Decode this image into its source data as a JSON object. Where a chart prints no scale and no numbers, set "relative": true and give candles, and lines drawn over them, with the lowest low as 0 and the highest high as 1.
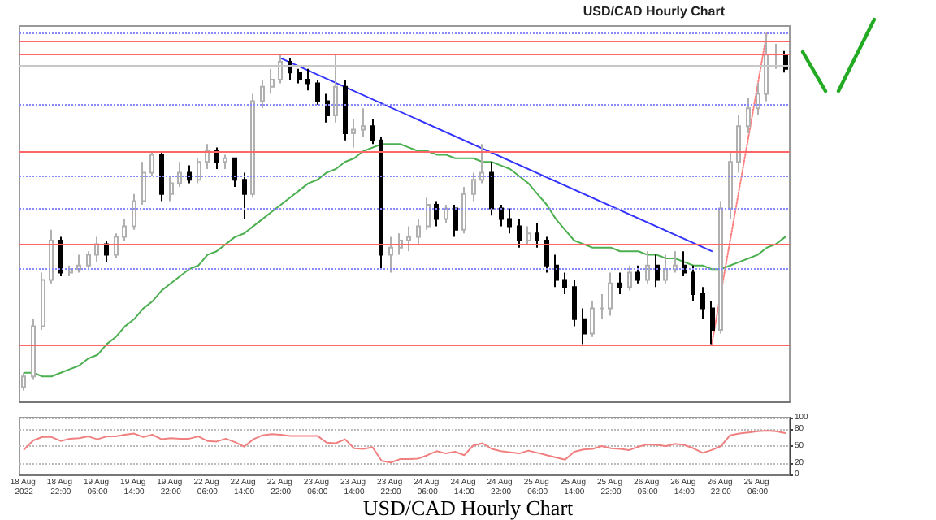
{
  "chart_data": [
    {
      "type": "candlestick",
      "title": "USD/CAD Hourly Chart",
      "relative": true,
      "tick_labels": false,
      "marker": "none",
      "categories": [
        "18 Aug 2022",
        null,
        null,
        null,
        "18 Aug 22:00",
        null,
        null,
        null,
        "19 Aug 06:00",
        null,
        null,
        null,
        "19 Aug 14:00",
        null,
        null,
        null,
        "19 Aug 22:00",
        null,
        null,
        null,
        "22 Aug 06:00",
        null,
        null,
        null,
        "22 Aug 14:00",
        null,
        null,
        null,
        "22 Aug 22:00",
        null,
        null,
        null,
        "23 Aug 06:00",
        null,
        null,
        null,
        "23 Aug 14:00",
        null,
        null,
        null,
        "23 Aug 22:00",
        null,
        null,
        null,
        "24 Aug 06:00",
        null,
        null,
        null,
        "24 Aug 14:00",
        null,
        null,
        null,
        "24 Aug 22:00",
        null,
        null,
        null,
        "25 Aug 06:00",
        null,
        null,
        null,
        "25 Aug 14:00",
        null,
        null,
        null,
        "25 Aug 22:00",
        null,
        null,
        null,
        "26 Aug 06:00",
        null,
        null,
        null,
        "26 Aug 14:00",
        null,
        null,
        null,
        "26 Aug 22:00",
        null,
        null,
        null,
        "29 Aug 06:00",
        null,
        null,
        null
      ],
      "ohlc": [
        [
          0.01,
          0.05,
          0,
          0.04
        ],
        [
          0.04,
          0.2,
          0.03,
          0.18
        ],
        [
          0.18,
          0.33,
          0.17,
          0.31
        ],
        [
          0.31,
          0.45,
          0.3,
          0.42
        ],
        [
          0.42,
          0.43,
          0.32,
          0.33
        ],
        [
          0.33,
          0.35,
          0.32,
          0.34
        ],
        [
          0.34,
          0.38,
          0.33,
          0.35
        ],
        [
          0.35,
          0.39,
          0.34,
          0.38
        ],
        [
          0.38,
          0.43,
          0.36,
          0.41
        ],
        [
          0.41,
          0.42,
          0.36,
          0.38
        ],
        [
          0.38,
          0.44,
          0.37,
          0.43
        ],
        [
          0.43,
          0.48,
          0.42,
          0.46
        ],
        [
          0.46,
          0.55,
          0.45,
          0.53
        ],
        [
          0.53,
          0.64,
          0.52,
          0.61
        ],
        [
          0.61,
          0.67,
          0.6,
          0.66
        ],
        [
          0.66,
          0.67,
          0.53,
          0.55
        ],
        [
          0.55,
          0.6,
          0.53,
          0.58
        ],
        [
          0.58,
          0.64,
          0.57,
          0.61
        ],
        [
          0.61,
          0.63,
          0.58,
          0.59
        ],
        [
          0.59,
          0.65,
          0.58,
          0.64
        ],
        [
          0.64,
          0.69,
          0.62,
          0.67
        ],
        [
          0.67,
          0.68,
          0.62,
          0.64
        ],
        [
          0.64,
          0.66,
          0.62,
          0.65
        ],
        [
          0.65,
          0.65,
          0.57,
          0.59
        ],
        [
          0.59,
          0.61,
          0.48,
          0.55
        ],
        [
          0.55,
          0.83,
          0.54,
          0.81
        ],
        [
          0.81,
          0.87,
          0.79,
          0.85
        ],
        [
          0.85,
          0.9,
          0.83,
          0.87
        ],
        [
          0.87,
          0.94,
          0.86,
          0.92
        ],
        [
          0.92,
          0.93,
          0.87,
          0.89
        ],
        [
          0.89,
          0.9,
          0.86,
          0.87
        ],
        [
          0.87,
          0.9,
          0.84,
          0.86
        ],
        [
          0.86,
          0.87,
          0.8,
          0.81
        ],
        [
          0.81,
          0.83,
          0.75,
          0.77
        ],
        [
          0.77,
          0.94,
          0.75,
          0.85
        ],
        [
          0.85,
          0.87,
          0.7,
          0.72
        ],
        [
          0.72,
          0.76,
          0.68,
          0.73
        ],
        [
          0.73,
          0.79,
          0.71,
          0.74
        ],
        [
          0.74,
          0.76,
          0.69,
          0.7
        ],
        [
          0.7,
          0.71,
          0.34,
          0.38
        ],
        [
          0.38,
          0.43,
          0.33,
          0.4
        ],
        [
          0.4,
          0.44,
          0.38,
          0.42
        ],
        [
          0.42,
          0.46,
          0.39,
          0.43
        ],
        [
          0.43,
          0.48,
          0.41,
          0.46
        ],
        [
          0.46,
          0.54,
          0.45,
          0.52
        ],
        [
          0.52,
          0.53,
          0.46,
          0.48
        ],
        [
          0.48,
          0.52,
          0.47,
          0.51
        ],
        [
          0.51,
          0.52,
          0.43,
          0.45
        ],
        [
          0.45,
          0.57,
          0.44,
          0.55
        ],
        [
          0.55,
          0.61,
          0.53,
          0.59
        ],
        [
          0.59,
          0.69,
          0.58,
          0.61
        ],
        [
          0.61,
          0.64,
          0.49,
          0.51
        ],
        [
          0.51,
          0.52,
          0.46,
          0.48
        ],
        [
          0.48,
          0.51,
          0.44,
          0.46
        ],
        [
          0.46,
          0.48,
          0.4,
          0.42
        ],
        [
          0.42,
          0.46,
          0.41,
          0.44
        ],
        [
          0.44,
          0.47,
          0.4,
          0.42
        ],
        [
          0.42,
          0.43,
          0.33,
          0.35
        ],
        [
          0.35,
          0.38,
          0.29,
          0.31
        ],
        [
          0.31,
          0.33,
          0.27,
          0.29
        ],
        [
          0.29,
          0.31,
          0.18,
          0.2
        ],
        [
          0.2,
          0.23,
          0.13,
          0.16
        ],
        [
          0.16,
          0.25,
          0.15,
          0.23
        ],
        [
          0.23,
          0.27,
          0.2,
          0.23
        ],
        [
          0.23,
          0.33,
          0.21,
          0.3
        ],
        [
          0.3,
          0.33,
          0.27,
          0.29
        ],
        [
          0.29,
          0.35,
          0.28,
          0.33
        ],
        [
          0.33,
          0.35,
          0.3,
          0.31
        ],
        [
          0.31,
          0.39,
          0.3,
          0.35
        ],
        [
          0.35,
          0.38,
          0.29,
          0.31
        ],
        [
          0.31,
          0.38,
          0.3,
          0.34
        ],
        [
          0.34,
          0.39,
          0.33,
          0.35
        ],
        [
          0.35,
          0.39,
          0.32,
          0.33
        ],
        [
          0.33,
          0.35,
          0.25,
          0.27
        ],
        [
          0.27,
          0.29,
          0.2,
          0.23
        ],
        [
          0.23,
          0.25,
          0.13,
          0.17
        ],
        [
          0.17,
          0.53,
          0.16,
          0.51
        ],
        [
          0.51,
          0.67,
          0.48,
          0.64
        ],
        [
          0.64,
          0.77,
          0.61,
          0.74
        ],
        [
          0.74,
          0.82,
          0.72,
          0.79
        ],
        [
          0.79,
          0.86,
          0.77,
          0.83
        ],
        [
          0.83,
          1,
          0.81,
          0.94
        ],
        [
          0.94,
          0.97,
          0.9,
          0.94
        ],
        [
          0.94,
          0.95,
          0.89,
          0.9
        ]
      ],
      "series": [
        {
          "type": "line",
          "color": "#4caf50",
          "values": [
            0.05,
            0.05,
            0.04,
            0.04,
            0.05,
            0.06,
            0.07,
            0.09,
            0.1,
            0.13,
            0.15,
            0.18,
            0.2,
            0.23,
            0.25,
            0.28,
            0.3,
            0.32,
            0.34,
            0.35,
            0.38,
            0.39,
            0.41,
            0.43,
            0.44,
            0.46,
            0.48,
            0.5,
            0.52,
            0.54,
            0.56,
            0.58,
            0.59,
            0.61,
            0.62,
            0.64,
            0.65,
            0.67,
            0.68,
            0.69,
            0.69,
            0.69,
            0.68,
            0.67,
            0.67,
            0.66,
            0.66,
            0.65,
            0.65,
            0.65,
            0.64,
            0.64,
            0.63,
            0.62,
            0.6,
            0.58,
            0.55,
            0.52,
            0.48,
            0.45,
            0.42,
            0.41,
            0.4,
            0.4,
            0.4,
            0.39,
            0.39,
            0.39,
            0.38,
            0.38,
            0.37,
            0.37,
            0.36,
            0.35,
            0.35,
            0.34,
            0.34,
            0.35,
            0.36,
            0.37,
            0.38,
            0.4,
            0.41,
            0.43
          ]
        },
        {
          "type": "line",
          "color": "#3333ff",
          "values": [
            null,
            null,
            null,
            null,
            null,
            null,
            null,
            null,
            null,
            null,
            null,
            null,
            null,
            null,
            null,
            null,
            null,
            null,
            null,
            null,
            null,
            null,
            null,
            null,
            null,
            null,
            null,
            null,
            0.93,
            null,
            null,
            null,
            null,
            null,
            null,
            null,
            null,
            null,
            null,
            null,
            null,
            null,
            null,
            null,
            null,
            null,
            null,
            null,
            null,
            null,
            null,
            null,
            null,
            null,
            null,
            null,
            null,
            null,
            null,
            null,
            null,
            null,
            null,
            null,
            null,
            null,
            null,
            null,
            null,
            null,
            null,
            null,
            null,
            null,
            null,
            0.39,
            null,
            null,
            null,
            null,
            null,
            null,
            null,
            null
          ]
        },
        {
          "type": "line",
          "color": "#ff8080",
          "line_style": "dotted",
          "values": [
            null,
            null,
            null,
            null,
            null,
            null,
            null,
            null,
            null,
            null,
            null,
            null,
            null,
            null,
            null,
            null,
            null,
            null,
            null,
            null,
            null,
            null,
            null,
            null,
            null,
            null,
            null,
            null,
            null,
            null,
            null,
            null,
            null,
            null,
            null,
            null,
            null,
            null,
            null,
            null,
            null,
            null,
            null,
            null,
            null,
            null,
            null,
            null,
            null,
            null,
            null,
            null,
            null,
            null,
            null,
            null,
            null,
            null,
            null,
            null,
            null,
            null,
            null,
            null,
            null,
            null,
            null,
            null,
            null,
            null,
            null,
            null,
            null,
            null,
            null,
            0.13,
            null,
            null,
            null,
            null,
            null,
            1,
            null,
            null
          ]
        }
      ],
      "ref_lines": [
        {
          "axis": "y",
          "value": 0.98,
          "color": "#ff6666",
          "line_style": "solid"
        },
        {
          "axis": "y",
          "value": 0.94,
          "color": "#ff6666",
          "line_style": "solid"
        },
        {
          "axis": "y",
          "value": 0.67,
          "color": "#ff6666",
          "line_style": "solid"
        },
        {
          "axis": "y",
          "value": 0.41,
          "color": "#ff6666",
          "line_style": "solid"
        },
        {
          "axis": "y",
          "value": 0.13,
          "color": "#ff6666",
          "line_style": "solid"
        },
        {
          "axis": "y",
          "value": 0.91,
          "color": "#c8c8c8",
          "line_style": "solid"
        },
        {
          "axis": "y",
          "value": 1,
          "color": "#8888ff",
          "line_style": "dotted"
        },
        {
          "axis": "y",
          "value": 0.8,
          "color": "#8888ff",
          "line_style": "dotted"
        },
        {
          "axis": "y",
          "value": 0.6,
          "color": "#8888ff",
          "line_style": "dotted"
        },
        {
          "axis": "y",
          "value": 0.51,
          "color": "#8888ff",
          "line_style": "dotted"
        },
        {
          "axis": "y",
          "value": 0.34,
          "color": "#8888ff",
          "line_style": "dotted"
        }
      ]
    },
    {
      "type": "line",
      "grid": "y",
      "marker": "none",
      "categories": [
        "18 Aug 2022",
        null,
        null,
        null,
        "18 Aug 22:00",
        null,
        null,
        null,
        "19 Aug 06:00",
        null,
        null,
        null,
        "19 Aug 14:00",
        null,
        null,
        null,
        "19 Aug 22:00",
        null,
        null,
        null,
        "22 Aug 06:00",
        null,
        null,
        null,
        "22 Aug 14:00",
        null,
        null,
        null,
        "22 Aug 22:00",
        null,
        null,
        null,
        "23 Aug 06:00",
        null,
        null,
        null,
        "23 Aug 14:00",
        null,
        null,
        null,
        "23 Aug 22:00",
        null,
        null,
        null,
        "24 Aug 06:00",
        null,
        null,
        null,
        "24 Aug 14:00",
        null,
        null,
        null,
        "24 Aug 22:00",
        null,
        null,
        null,
        "25 Aug 06:00",
        null,
        null,
        null,
        "25 Aug 14:00",
        null,
        null,
        null,
        "25 Aug 22:00",
        null,
        null,
        null,
        "26 Aug 06:00",
        null,
        null,
        null,
        "26 Aug 14:00",
        null,
        null,
        null,
        "26 Aug 22:00",
        null,
        null,
        null,
        "29 Aug 06:00",
        null,
        null,
        null
      ],
      "ylim": [
        0,
        100
      ],
      "yticks": [
        0,
        20,
        50,
        80,
        100
      ],
      "series": [
        {
          "color": "#f08080",
          "values": [
            44,
            60,
            66,
            66,
            59,
            63,
            64,
            67,
            62,
            67,
            67,
            70,
            72,
            66,
            70,
            62,
            64,
            63,
            63,
            67,
            59,
            58,
            63,
            57,
            49,
            62,
            69,
            71,
            70,
            68,
            68,
            68,
            68,
            56,
            55,
            62,
            46,
            45,
            48,
            24,
            21,
            27,
            27,
            28,
            34,
            41,
            37,
            40,
            34,
            51,
            55,
            45,
            41,
            39,
            37,
            42,
            38,
            34,
            30,
            26,
            40,
            44,
            45,
            50,
            46,
            45,
            43,
            49,
            53,
            52,
            50,
            54,
            52,
            46,
            38,
            43,
            50,
            69,
            72,
            74,
            76,
            77,
            76,
            73
          ]
        }
      ],
      "annotations": [
        "USD/CAD Hourly Chart"
      ]
    }
  ]
}
